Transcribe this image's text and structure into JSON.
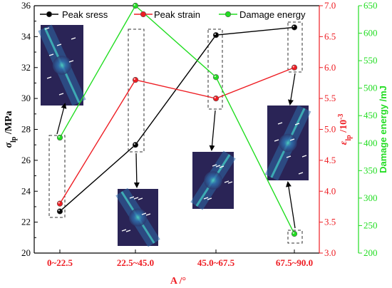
{
  "chart_data": {
    "type": "line",
    "categories": [
      "0~22.5",
      "22.5~45.0",
      "45.0~67.5",
      "67.5~90.0"
    ],
    "xlabel": "A /°",
    "series": [
      {
        "name": "Peak sress",
        "axis": "left",
        "color": "#000000",
        "values": [
          22.7,
          27.0,
          34.1,
          34.6
        ]
      },
      {
        "name": "Peak strain",
        "axis": "right1",
        "color": "#ee1d23",
        "values": [
          3.8,
          5.8,
          5.5,
          6.0
        ]
      },
      {
        "name": "Damage energy",
        "axis": "right2",
        "color": "#22dd22",
        "values": [
          410,
          650,
          520,
          235
        ]
      }
    ],
    "axes": {
      "left": {
        "label_main": "σ",
        "label_sub": "lp",
        "label_unit": " /MPa",
        "ylim": [
          20,
          36
        ],
        "ticks": [
          "20",
          "22",
          "24",
          "26",
          "28",
          "30",
          "32",
          "34",
          "36"
        ]
      },
      "right1": {
        "label_main": "ε",
        "label_sub": "lp",
        "label_unit": " /10",
        "label_sup": "-3",
        "ylim": [
          3.0,
          7.0
        ],
        "ticks": [
          "3.0",
          "3.5",
          "4.0",
          "4.5",
          "5.0",
          "5.5",
          "6.0",
          "6.5",
          "7.0"
        ]
      },
      "right2": {
        "label": "Damage energy /mJ",
        "ylim": [
          200,
          650
        ],
        "ticks": [
          "200",
          "250",
          "300",
          "350",
          "400",
          "450",
          "500",
          "550",
          "600",
          "650"
        ]
      }
    },
    "grid": false,
    "legend": "top"
  },
  "colors": {
    "stress": "#000000",
    "strain": "#ee1d23",
    "energy": "#22dd22",
    "specimen_bg": "#2a2456",
    "specimen_mid": "#2e6aa8",
    "specimen_hot": "#45d3c8"
  }
}
